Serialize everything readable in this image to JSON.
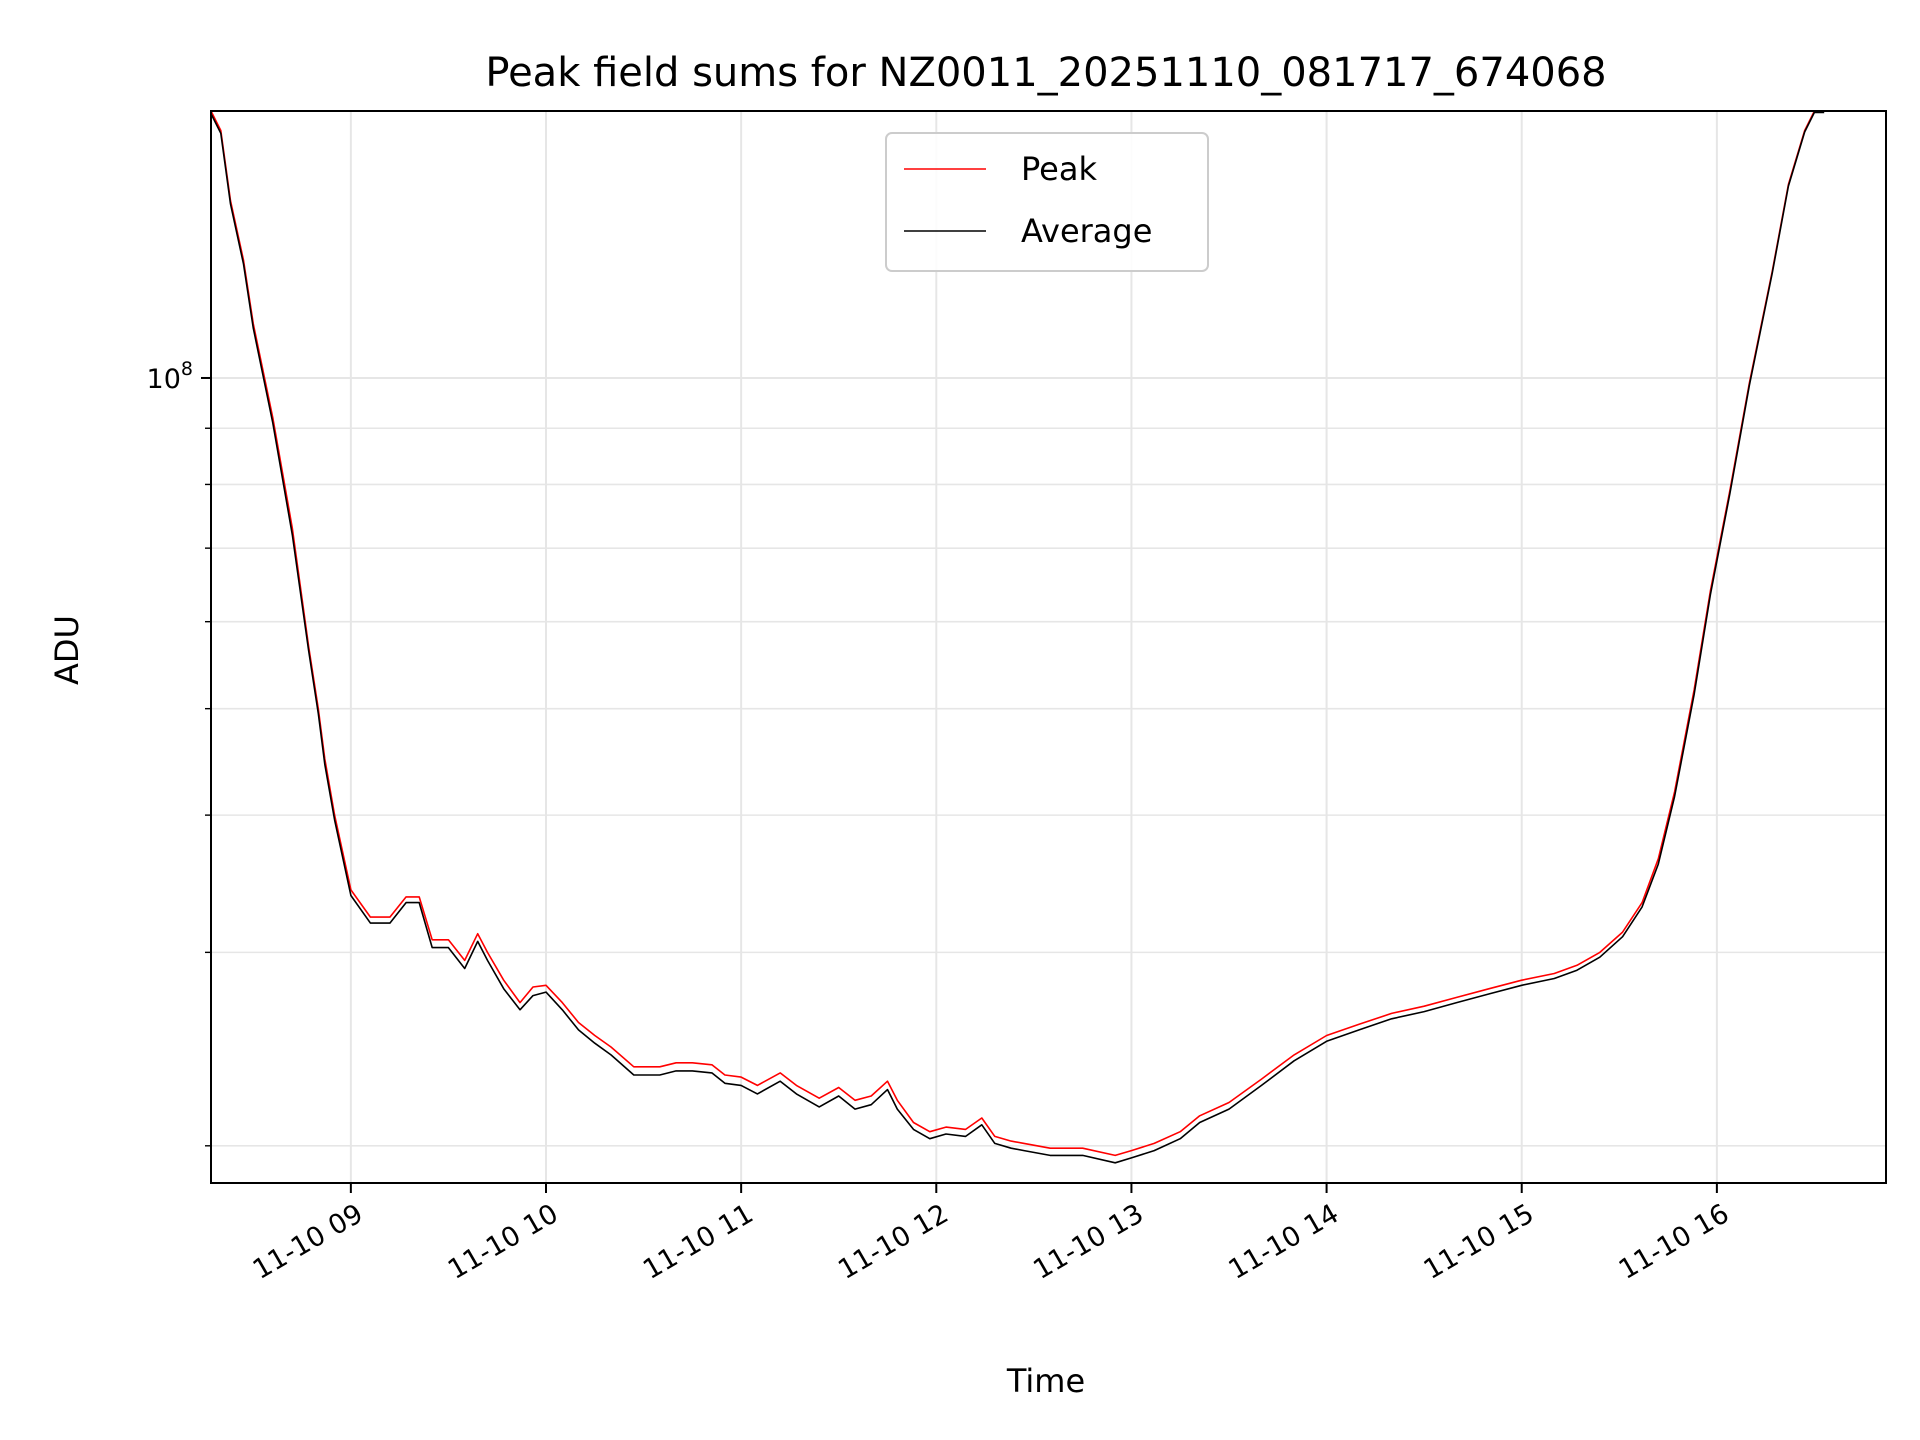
{
  "chart_data": {
    "type": "line",
    "title": "Peak field sums for NZ0011_20251110_081717_674068",
    "xlabel": "Time",
    "ylabel": "ADU",
    "y_scale": "log",
    "ylim": [
      18500000,
      175000000
    ],
    "xlim": [
      "11-10 08:17",
      "11-10 16:52"
    ],
    "x_tick_labels": [
      "11-10 09",
      "11-10 10",
      "11-10 11",
      "11-10 12",
      "11-10 13",
      "11-10 14",
      "11-10 15",
      "11-10 16"
    ],
    "y_tick_labels": [
      "10^8"
    ],
    "grid": true,
    "legend": "top-center",
    "x": [
      "11-10 08:17",
      "11-10 08:20",
      "11-10 08:23",
      "11-10 08:27",
      "11-10 08:30",
      "11-10 08:36",
      "11-10 08:42",
      "11-10 08:47",
      "11-10 08:50",
      "11-10 08:52",
      "11-10 08:55",
      "11-10 09:00",
      "11-10 09:06",
      "11-10 09:12",
      "11-10 09:17",
      "11-10 09:21",
      "11-10 09:25",
      "11-10 09:30",
      "11-10 09:35",
      "11-10 09:39",
      "11-10 09:42",
      "11-10 09:47",
      "11-10 09:52",
      "11-10 09:56",
      "11-10 10:00",
      "11-10 10:05",
      "11-10 10:10",
      "11-10 10:15",
      "11-10 10:20",
      "11-10 10:27",
      "11-10 10:35",
      "11-10 10:40",
      "11-10 10:45",
      "11-10 10:51",
      "11-10 10:55",
      "11-10 11:00",
      "11-10 11:05",
      "11-10 11:12",
      "11-10 11:17",
      "11-10 11:24",
      "11-10 11:30",
      "11-10 11:35",
      "11-10 11:40",
      "11-10 11:45",
      "11-10 11:48",
      "11-10 11:53",
      "11-10 11:58",
      "11-10 12:03",
      "11-10 12:09",
      "11-10 12:14",
      "11-10 12:18",
      "11-10 12:23",
      "11-10 12:27",
      "11-10 12:35",
      "11-10 12:45",
      "11-10 12:55",
      "11-10 13:00",
      "11-10 13:07",
      "11-10 13:15",
      "11-10 13:21",
      "11-10 13:30",
      "11-10 13:40",
      "11-10 13:50",
      "11-10 14:00",
      "11-10 14:10",
      "11-10 14:20",
      "11-10 14:30",
      "11-10 14:40",
      "11-10 14:50",
      "11-10 15:00",
      "11-10 15:10",
      "11-10 15:17",
      "11-10 15:24",
      "11-10 15:31",
      "11-10 15:37",
      "11-10 15:42",
      "11-10 15:47",
      "11-10 15:53",
      "11-10 15:58",
      "11-10 16:04",
      "11-10 16:10",
      "11-10 16:17",
      "11-10 16:22",
      "11-10 16:27",
      "11-10 16:30",
      "11-10 16:33"
    ],
    "series": [
      {
        "name": "Peak",
        "color": "#ff0000",
        "values": [
          175000000,
          168000000,
          145000000,
          128000000,
          112000000,
          92000000,
          73000000,
          57000000,
          50000000,
          45000000,
          40000000,
          34200000,
          32300000,
          32300000,
          33700000,
          33700000,
          30800000,
          30800000,
          29500000,
          31200000,
          30000000,
          28300000,
          27000000,
          27900000,
          28000000,
          27000000,
          25900000,
          25200000,
          24600000,
          23600000,
          23600000,
          23800000,
          23800000,
          23700000,
          23200000,
          23100000,
          22700000,
          23300000,
          22700000,
          22100000,
          22600000,
          22000000,
          22200000,
          22900000,
          22000000,
          21000000,
          20600000,
          20800000,
          20700000,
          21200000,
          20400000,
          20200000,
          20100000,
          19900000,
          19900000,
          19600000,
          19800000,
          20100000,
          20600000,
          21300000,
          21900000,
          23000000,
          24200000,
          25200000,
          25800000,
          26400000,
          26800000,
          27300000,
          27800000,
          28300000,
          28700000,
          29200000,
          30000000,
          31300000,
          33300000,
          36500000,
          42000000,
          52000000,
          64000000,
          79000000,
          99000000,
          125000000,
          150000000,
          168000000,
          175000000,
          175000000
        ]
      },
      {
        "name": "Average",
        "color": "#000000",
        "values": [
          174000000,
          167000000,
          144000000,
          127000000,
          111000000,
          91000000,
          72000000,
          56500000,
          49500000,
          44500000,
          39600000,
          33800000,
          31900000,
          31900000,
          33300000,
          33300000,
          30300000,
          30300000,
          29000000,
          30700000,
          29500000,
          27800000,
          26600000,
          27400000,
          27600000,
          26600000,
          25500000,
          24800000,
          24200000,
          23200000,
          23200000,
          23400000,
          23400000,
          23300000,
          22800000,
          22700000,
          22300000,
          22900000,
          22300000,
          21700000,
          22200000,
          21600000,
          21800000,
          22500000,
          21600000,
          20700000,
          20300000,
          20500000,
          20400000,
          20900000,
          20100000,
          19900000,
          19800000,
          19600000,
          19600000,
          19300000,
          19500000,
          19800000,
          20300000,
          21000000,
          21600000,
          22700000,
          23900000,
          24900000,
          25500000,
          26100000,
          26500000,
          27000000,
          27500000,
          28000000,
          28400000,
          28900000,
          29700000,
          31000000,
          33000000,
          36100000,
          41600000,
          51500000,
          63500000,
          78500000,
          98500000,
          124500000,
          149500000,
          167500000,
          174500000,
          174500000
        ]
      }
    ]
  }
}
